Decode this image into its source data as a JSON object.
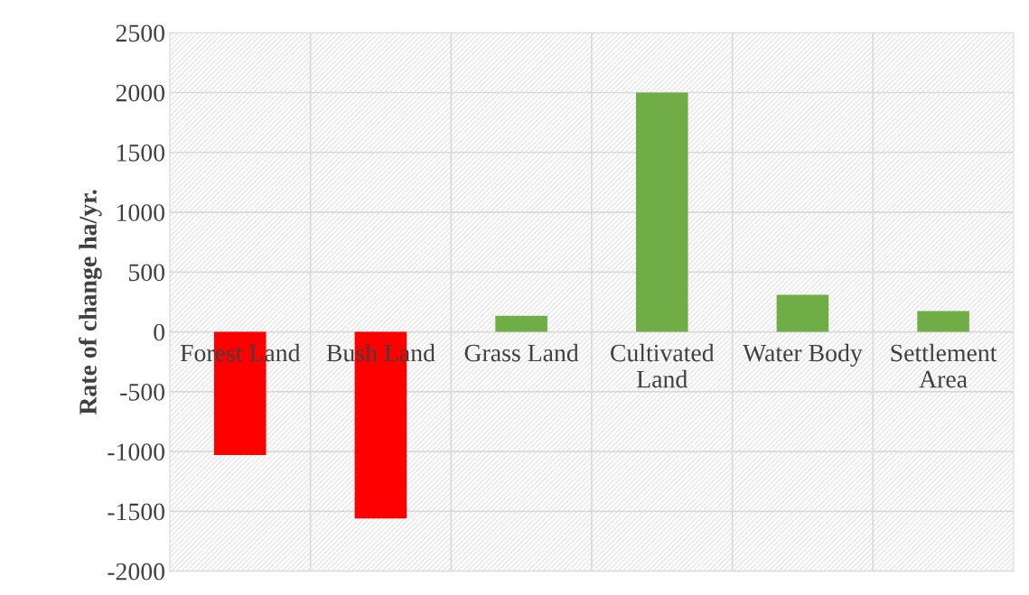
{
  "chart_data": {
    "type": "bar",
    "ylabel": "Rate of change ha/yr.",
    "categories": [
      "Forest Land",
      "Bush Land",
      "Grass Land",
      "Cultivated Land",
      "Water Body",
      "Settlement Area"
    ],
    "values": [
      -1030,
      -1560,
      135,
      2000,
      310,
      175
    ],
    "colors": [
      "#ff0000",
      "#ff0000",
      "#70ad47",
      "#70ad47",
      "#70ad47",
      "#70ad47"
    ],
    "ylim": [
      -2000,
      2500
    ],
    "yticks": [
      -2000,
      -1500,
      -1000,
      -500,
      0,
      500,
      1000,
      1500,
      2000,
      2500
    ],
    "grid": true
  }
}
